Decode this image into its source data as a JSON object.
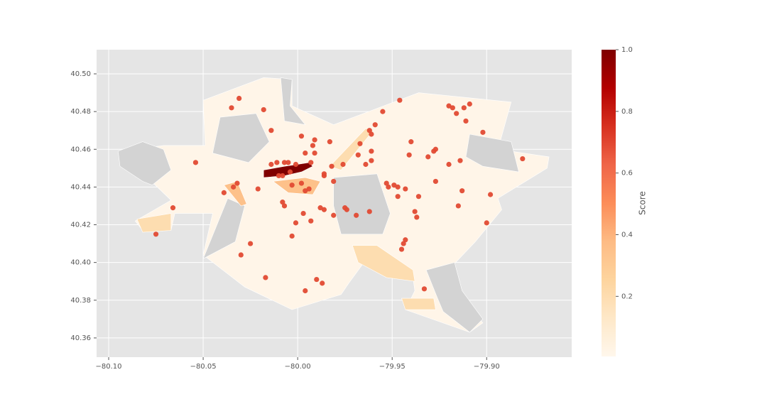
{
  "chart_data": {
    "type": "choropleth-scatter",
    "xlim": [
      -80.1064,
      -79.855
    ],
    "ylim": [
      40.3498,
      40.5128
    ],
    "xticks": [
      {
        "value": -80.1,
        "label": "−80.10"
      },
      {
        "value": -80.05,
        "label": "−80.05"
      },
      {
        "value": -80.0,
        "label": "−80.00"
      },
      {
        "value": -79.95,
        "label": "−79.95"
      },
      {
        "value": -79.9,
        "label": "−79.90"
      }
    ],
    "yticks": [
      {
        "value": 40.36,
        "label": "40.36"
      },
      {
        "value": 40.38,
        "label": "40.38"
      },
      {
        "value": 40.4,
        "label": "40.40"
      },
      {
        "value": 40.42,
        "label": "40.42"
      },
      {
        "value": 40.44,
        "label": "40.44"
      },
      {
        "value": 40.46,
        "label": "40.46"
      },
      {
        "value": 40.48,
        "label": "40.48"
      },
      {
        "value": 40.5,
        "label": "40.50"
      }
    ],
    "grid": true,
    "background": "#e5e5e5",
    "missing_color": "#d3d3d3",
    "colormap": [
      "#fff7ec",
      "#fee8c8",
      "#fdd49e",
      "#fdbb84",
      "#fc8d59",
      "#ef6548",
      "#d7301f",
      "#b30000",
      "#7f0000"
    ],
    "colorbar": {
      "label": "Score",
      "lim": [
        0.005,
        1.0
      ],
      "ticks": [
        0.2,
        0.4,
        0.6,
        0.8,
        {
          "value": 1.0,
          "label": "1.0"
        }
      ]
    },
    "regions": [
      {
        "score": 0.02,
        "coords": [
          [
            -80.086,
            40.422
          ],
          [
            -80.067,
            40.433
          ],
          [
            -80.094,
            40.459
          ],
          [
            -80.071,
            40.462
          ],
          [
            -80.049,
            40.462
          ],
          [
            -80.05,
            40.486
          ],
          [
            -80.018,
            40.498
          ],
          [
            -80.003,
            40.497
          ],
          [
            -80.003,
            40.483
          ],
          [
            -79.981,
            40.473
          ],
          [
            -79.936,
            40.49
          ],
          [
            -79.887,
            40.485
          ],
          [
            -79.894,
            40.46
          ],
          [
            -79.867,
            40.456
          ],
          [
            -79.868,
            40.45
          ],
          [
            -79.894,
            40.434
          ],
          [
            -79.892,
            40.428
          ],
          [
            -79.906,
            40.411
          ],
          [
            -79.924,
            40.392
          ],
          [
            -79.902,
            40.368
          ],
          [
            -79.909,
            40.363
          ],
          [
            -79.943,
            40.375
          ],
          [
            -79.938,
            40.385
          ],
          [
            -79.939,
            40.392
          ],
          [
            -79.962,
            40.404
          ],
          [
            -79.973,
            40.389
          ],
          [
            -79.977,
            40.383
          ],
          [
            -80.003,
            40.375
          ],
          [
            -80.028,
            40.387
          ],
          [
            -80.05,
            40.404
          ],
          [
            -80.045,
            40.426
          ],
          [
            -80.065,
            40.426
          ],
          [
            -80.067,
            40.417
          ],
          [
            -80.082,
            40.417
          ]
        ]
      },
      {
        "score": null,
        "coords": [
          [
            -80.095,
            40.459
          ],
          [
            -80.082,
            40.464
          ],
          [
            -80.071,
            40.46
          ],
          [
            -80.067,
            40.449
          ],
          [
            -80.077,
            40.441
          ],
          [
            -80.082,
            40.443
          ],
          [
            -80.094,
            40.451
          ]
        ]
      },
      {
        "score": null,
        "coords": [
          [
            -79.909,
            40.468
          ],
          [
            -79.887,
            40.464
          ],
          [
            -79.883,
            40.448
          ],
          [
            -79.902,
            40.451
          ],
          [
            -79.911,
            40.456
          ]
        ]
      },
      {
        "score": null,
        "coords": [
          [
            -80.041,
            40.477
          ],
          [
            -80.022,
            40.479
          ],
          [
            -80.015,
            40.464
          ],
          [
            -80.026,
            40.453
          ],
          [
            -80.045,
            40.458
          ]
        ]
      },
      {
        "score": null,
        "coords": [
          [
            -80.05,
            40.402
          ],
          [
            -80.037,
            40.434
          ],
          [
            -80.028,
            40.43
          ],
          [
            -80.033,
            40.411
          ]
        ]
      },
      {
        "score": null,
        "coords": [
          [
            -79.981,
            40.445
          ],
          [
            -79.958,
            40.447
          ],
          [
            -79.951,
            40.426
          ],
          [
            -79.955,
            40.415
          ],
          [
            -79.977,
            40.415
          ],
          [
            -79.981,
            40.43
          ]
        ]
      },
      {
        "score": null,
        "coords": [
          [
            -79.932,
            40.396
          ],
          [
            -79.917,
            40.4
          ],
          [
            -79.913,
            40.385
          ],
          [
            -79.902,
            40.37
          ],
          [
            -79.909,
            40.363
          ],
          [
            -79.923,
            40.374
          ],
          [
            -79.926,
            40.381
          ]
        ]
      },
      {
        "score": null,
        "coords": [
          [
            -80.009,
            40.498
          ],
          [
            -80.003,
            40.497
          ],
          [
            -80.004,
            40.483
          ],
          [
            -79.996,
            40.473
          ],
          [
            -80.007,
            40.475
          ]
        ]
      },
      {
        "score": 0.35,
        "coords": [
          [
            -80.013,
            40.443
          ],
          [
            -79.996,
            40.445
          ],
          [
            -79.988,
            40.443
          ],
          [
            -79.992,
            40.436
          ],
          [
            -80.005,
            40.437
          ]
        ]
      },
      {
        "score": 0.35,
        "coords": [
          [
            -80.039,
            40.441
          ],
          [
            -80.032,
            40.443
          ],
          [
            -80.027,
            40.431
          ],
          [
            -80.03,
            40.43
          ]
        ]
      },
      {
        "score": 0.2,
        "coords": [
          [
            -79.971,
            40.409
          ],
          [
            -79.958,
            40.409
          ],
          [
            -79.939,
            40.396
          ],
          [
            -79.938,
            40.39
          ],
          [
            -79.953,
            40.392
          ],
          [
            -79.968,
            40.4
          ]
        ]
      },
      {
        "score": 0.2,
        "coords": [
          [
            -79.945,
            40.381
          ],
          [
            -79.928,
            40.381
          ],
          [
            -79.927,
            40.375
          ],
          [
            -79.943,
            40.375
          ]
        ]
      },
      {
        "score": 0.2,
        "coords": [
          [
            -80.085,
            40.423
          ],
          [
            -80.067,
            40.426
          ],
          [
            -80.067,
            40.417
          ],
          [
            -80.082,
            40.416
          ]
        ]
      },
      {
        "score": 0.2,
        "coords": [
          [
            -79.983,
            40.451
          ],
          [
            -79.964,
            40.471
          ],
          [
            -79.96,
            40.47
          ],
          [
            -79.977,
            40.449
          ]
        ]
      },
      {
        "score": 1.0,
        "coords": [
          [
            -80.018,
            40.449
          ],
          [
            -80.007,
            40.451
          ],
          [
            -80.0,
            40.452
          ],
          [
            -79.994,
            40.453
          ],
          [
            -79.992,
            40.451
          ],
          [
            -79.998,
            40.448
          ],
          [
            -80.007,
            40.446
          ],
          [
            -80.018,
            40.445
          ]
        ]
      }
    ],
    "points": {
      "color": "#e24a33",
      "x": [
        -80.031,
        -80.035,
        -80.018,
        -80.014,
        -80.054,
        -80.066,
        -80.075,
        -80.039,
        -80.034,
        -80.032,
        -80.021,
        -80.008,
        -80.007,
        -79.997,
        -80.001,
        -80.003,
        -79.993,
        -80.025,
        -80.03,
        -80.017,
        -79.99,
        -79.996,
        -79.987,
        -79.988,
        -79.986,
        -79.981,
        -79.975,
        -79.974,
        -79.969,
        -79.962,
        -79.991,
        -79.992,
        -79.991,
        -79.998,
        -79.996,
        -79.983,
        -79.982,
        -79.986,
        -79.981,
        -79.976,
        -79.967,
        -79.961,
        -79.959,
        -79.962,
        -79.961,
        -79.955,
        -79.968,
        -79.964,
        -79.961,
        -79.946,
        -79.953,
        -79.949,
        -79.947,
        -79.947,
        -79.943,
        -79.936,
        -79.938,
        -79.937,
        -79.943,
        -79.944,
        -79.945,
        -79.933,
        -79.941,
        -79.94,
        -79.931,
        -79.928,
        -79.927,
        -79.92,
        -79.927,
        -79.914,
        -79.915,
        -79.913,
        -79.9,
        -79.898,
        -79.902,
        -79.911,
        -79.916,
        -79.918,
        -79.92,
        -79.912,
        -79.909,
        -79.881,
        -79.998,
        -79.996,
        -80.003,
        -80.004,
        -80.008,
        -80.01,
        -80.014,
        -80.011,
        -80.007,
        -80.005,
        -80.001,
        -79.993,
        -79.986,
        -79.994,
        -79.952
      ],
      "y": [
        40.487,
        40.482,
        40.481,
        40.47,
        40.453,
        40.429,
        40.415,
        40.437,
        40.44,
        40.442,
        40.439,
        40.432,
        40.43,
        40.426,
        40.421,
        40.414,
        40.422,
        40.41,
        40.404,
        40.392,
        40.391,
        40.385,
        40.389,
        40.429,
        40.428,
        40.425,
        40.429,
        40.428,
        40.425,
        40.427,
        40.458,
        40.462,
        40.465,
        40.467,
        40.458,
        40.464,
        40.451,
        40.447,
        40.443,
        40.452,
        40.463,
        40.459,
        40.473,
        40.47,
        40.468,
        40.48,
        40.457,
        40.452,
        40.454,
        40.486,
        40.442,
        40.441,
        40.44,
        40.435,
        40.439,
        40.435,
        40.427,
        40.424,
        40.412,
        40.41,
        40.407,
        40.386,
        40.457,
        40.464,
        40.456,
        40.459,
        40.46,
        40.452,
        40.443,
        40.454,
        40.43,
        40.438,
        40.421,
        40.436,
        40.469,
        40.475,
        40.479,
        40.482,
        40.483,
        40.482,
        40.484,
        40.455,
        40.442,
        40.438,
        40.441,
        40.448,
        40.446,
        40.446,
        40.452,
        40.453,
        40.453,
        40.453,
        40.452,
        40.453,
        40.446,
        40.439,
        40.44
      ]
    }
  }
}
